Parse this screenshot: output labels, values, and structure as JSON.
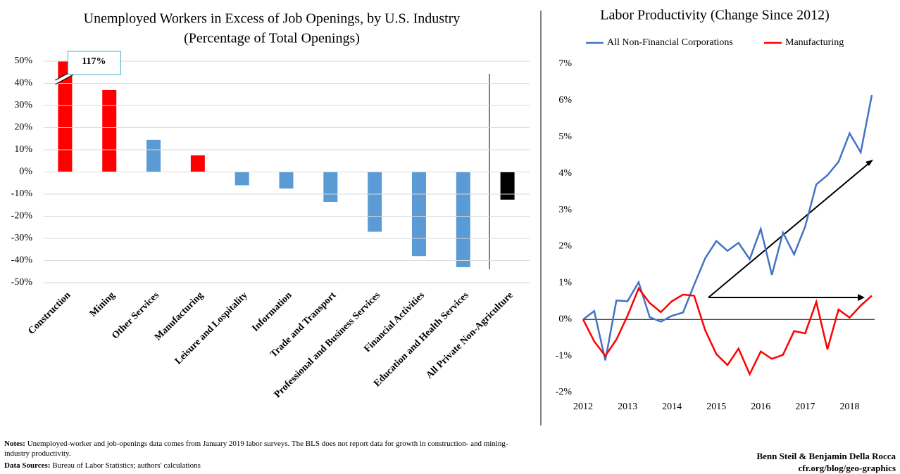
{
  "chart_data": [
    {
      "type": "bar",
      "title": [
        "Unemployed Workers in Excess of Job Openings, by U.S. Industry",
        "(Percentage of Total Openings)"
      ],
      "categories": [
        "Construction",
        "Mining",
        "Other Services",
        "Manufacturing",
        "Leisure and Lospitality",
        "Information",
        "Trade and Transport",
        "Professional and Business Services",
        "Financial Activities",
        "Education and Health Services",
        "All Private Non-Agriculture"
      ],
      "values": [
        117,
        37,
        14.5,
        7.5,
        -6,
        -7.5,
        -13.5,
        -27,
        -38,
        -43,
        -12.5
      ],
      "value_labels": [
        "117%",
        null,
        null,
        null,
        null,
        null,
        null,
        null,
        null,
        null,
        null
      ],
      "colors": [
        "#ff0000",
        "#ff0000",
        "#5b9bd5",
        "#ff0000",
        "#5b9bd5",
        "#5b9bd5",
        "#5b9bd5",
        "#5b9bd5",
        "#5b9bd5",
        "#5b9bd5",
        "#000000"
      ],
      "ylim": [
        -50,
        50
      ],
      "yticks": [
        {
          "value": -50,
          "label": "-50%"
        },
        {
          "value": -40,
          "label": "-40%"
        },
        {
          "value": -30,
          "label": "-30%"
        },
        {
          "value": -20,
          "label": "-20%"
        },
        {
          "value": -10,
          "label": "-10%"
        },
        {
          "value": 0,
          "label": "0%"
        },
        {
          "value": 10,
          "label": "10%"
        },
        {
          "value": 20,
          "label": "20%"
        },
        {
          "value": 30,
          "label": "30%"
        },
        {
          "value": 40,
          "label": "40%"
        },
        {
          "value": 50,
          "label": "50%"
        }
      ],
      "grid": true
    },
    {
      "type": "line",
      "title": "Labor Productivity (Change Since 2012)",
      "x": [
        2012,
        2012.25,
        2012.5,
        2012.75,
        2013,
        2013.25,
        2013.5,
        2013.75,
        2014,
        2014.25,
        2014.5,
        2014.75,
        2015,
        2015.25,
        2015.5,
        2015.75,
        2016,
        2016.25,
        2016.5,
        2016.75,
        2017,
        2017.25,
        2017.5,
        2017.75,
        2018,
        2018.25,
        2018.5
      ],
      "series": [
        {
          "name": "All Non-Financial Corporations",
          "color": "#4472c4",
          "values": [
            0,
            0.23,
            -1.12,
            0.52,
            0.5,
            1.02,
            0.06,
            -0.06,
            0.1,
            0.19,
            0.95,
            1.68,
            2.15,
            1.88,
            2.1,
            1.65,
            2.48,
            1.22,
            2.38,
            1.78,
            2.55,
            3.7,
            3.95,
            4.32,
            5.1,
            4.58,
            6.15
          ]
        },
        {
          "name": "Manufacturing",
          "color": "#ff0000",
          "values": [
            0,
            -0.6,
            -1.0,
            -0.55,
            0.1,
            0.85,
            0.45,
            0.2,
            0.5,
            0.68,
            0.65,
            -0.3,
            -0.95,
            -1.25,
            -0.8,
            -1.5,
            -0.88,
            -1.08,
            -0.97,
            -0.32,
            -0.38,
            0.48,
            -0.82,
            0.27,
            0.05,
            0.38,
            0.65
          ]
        }
      ],
      "xlim": [
        2012,
        2018.5
      ],
      "xticks": [
        2012,
        2013,
        2014,
        2015,
        2016,
        2017,
        2018
      ],
      "ylim": [
        -2,
        7
      ],
      "yticks": [
        {
          "value": -2,
          "label": "-2%"
        },
        {
          "value": -1,
          "label": "-1%"
        },
        {
          "value": 0,
          "label": "0%"
        },
        {
          "value": 1,
          "label": "1%"
        },
        {
          "value": 2,
          "label": "2%"
        },
        {
          "value": 3,
          "label": "3%"
        },
        {
          "value": 4,
          "label": "4%"
        },
        {
          "value": 5,
          "label": "5%"
        },
        {
          "value": 6,
          "label": "6%"
        },
        {
          "value": 7,
          "label": "7%"
        }
      ],
      "legend": "top"
    }
  ],
  "footer": {
    "notes": {
      "label": "Notes:",
      "text": "Unemployed-worker and job-openings data comes from January 2019 labor surveys. The BLS does not report data for growth in construction- and mining-industry productivity."
    },
    "sources": {
      "label": "Data Sources:",
      "text": "Bureau of Labor Statistics; authors' calculations"
    },
    "credits": [
      "Benn Steil & Benjamin Della Rocca",
      "cfr.org/blog/geo-graphics"
    ]
  }
}
